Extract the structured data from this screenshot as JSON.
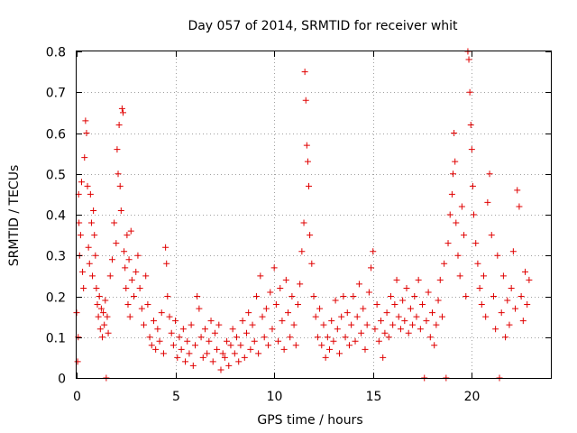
{
  "chart_data": {
    "type": "scatter",
    "title": "Day 057 of 2014, SRMTID for receiver whit",
    "xlabel": "GPS time / hours",
    "ylabel": "SRMTID / TECUs",
    "xlim": [
      0,
      24
    ],
    "ylim": [
      0,
      0.8
    ],
    "xticks": [
      0,
      5,
      10,
      15,
      20
    ],
    "yticks": [
      0,
      0.1,
      0.2,
      0.3,
      0.4,
      0.5,
      0.6,
      0.7,
      0.8
    ],
    "xtick_labels": [
      "0",
      "5",
      "10",
      "15",
      "20"
    ],
    "ytick_labels": [
      "0",
      "0.1",
      "0.2",
      "0.3",
      "0.4",
      "0.5",
      "0.6",
      "0.7",
      "0.8"
    ],
    "grid": true,
    "marker": "+",
    "color": "#e00000",
    "series": [
      {
        "name": "SRMTID",
        "points": [
          [
            0.0,
            0.16
          ],
          [
            0.05,
            0.04
          ],
          [
            0.08,
            0.1
          ],
          [
            0.1,
            0.45
          ],
          [
            0.12,
            0.38
          ],
          [
            0.15,
            0.3
          ],
          [
            0.2,
            0.35
          ],
          [
            0.25,
            0.48
          ],
          [
            0.3,
            0.26
          ],
          [
            0.35,
            0.22
          ],
          [
            0.4,
            0.54
          ],
          [
            0.45,
            0.63
          ],
          [
            0.5,
            0.6
          ],
          [
            0.55,
            0.47
          ],
          [
            0.6,
            0.32
          ],
          [
            0.65,
            0.28
          ],
          [
            0.7,
            0.45
          ],
          [
            0.75,
            0.38
          ],
          [
            0.8,
            0.25
          ],
          [
            0.85,
            0.41
          ],
          [
            0.9,
            0.35
          ],
          [
            0.95,
            0.3
          ],
          [
            1.0,
            0.22
          ],
          [
            1.05,
            0.18
          ],
          [
            1.1,
            0.15
          ],
          [
            1.15,
            0.2
          ],
          [
            1.2,
            0.12
          ],
          [
            1.25,
            0.17
          ],
          [
            1.3,
            0.1
          ],
          [
            1.35,
            0.16
          ],
          [
            1.4,
            0.13
          ],
          [
            1.45,
            0.19
          ],
          [
            1.5,
            0.0
          ],
          [
            1.55,
            0.15
          ],
          [
            1.6,
            0.11
          ],
          [
            1.7,
            0.25
          ],
          [
            1.8,
            0.29
          ],
          [
            1.9,
            0.38
          ],
          [
            2.0,
            0.33
          ],
          [
            2.05,
            0.56
          ],
          [
            2.1,
            0.5
          ],
          [
            2.15,
            0.62
          ],
          [
            2.2,
            0.47
          ],
          [
            2.25,
            0.41
          ],
          [
            2.3,
            0.66
          ],
          [
            2.35,
            0.65
          ],
          [
            2.4,
            0.31
          ],
          [
            2.45,
            0.27
          ],
          [
            2.5,
            0.22
          ],
          [
            2.55,
            0.35
          ],
          [
            2.6,
            0.18
          ],
          [
            2.65,
            0.29
          ],
          [
            2.7,
            0.15
          ],
          [
            2.75,
            0.36
          ],
          [
            2.8,
            0.24
          ],
          [
            2.9,
            0.2
          ],
          [
            3.0,
            0.26
          ],
          [
            3.1,
            0.3
          ],
          [
            3.2,
            0.22
          ],
          [
            3.3,
            0.17
          ],
          [
            3.4,
            0.13
          ],
          [
            3.5,
            0.25
          ],
          [
            3.6,
            0.18
          ],
          [
            3.7,
            0.1
          ],
          [
            3.8,
            0.08
          ],
          [
            3.9,
            0.14
          ],
          [
            4.0,
            0.07
          ],
          [
            4.1,
            0.12
          ],
          [
            4.2,
            0.09
          ],
          [
            4.3,
            0.16
          ],
          [
            4.4,
            0.06
          ],
          [
            4.5,
            0.32
          ],
          [
            4.55,
            0.28
          ],
          [
            4.6,
            0.2
          ],
          [
            4.7,
            0.15
          ],
          [
            4.8,
            0.11
          ],
          [
            4.9,
            0.08
          ],
          [
            5.0,
            0.14
          ],
          [
            5.1,
            0.05
          ],
          [
            5.2,
            0.1
          ],
          [
            5.3,
            0.07
          ],
          [
            5.4,
            0.12
          ],
          [
            5.5,
            0.04
          ],
          [
            5.6,
            0.09
          ],
          [
            5.7,
            0.06
          ],
          [
            5.8,
            0.13
          ],
          [
            5.9,
            0.03
          ],
          [
            6.0,
            0.08
          ],
          [
            6.1,
            0.2
          ],
          [
            6.2,
            0.17
          ],
          [
            6.3,
            0.1
          ],
          [
            6.4,
            0.05
          ],
          [
            6.5,
            0.12
          ],
          [
            6.6,
            0.06
          ],
          [
            6.7,
            0.09
          ],
          [
            6.8,
            0.14
          ],
          [
            6.9,
            0.04
          ],
          [
            7.0,
            0.11
          ],
          [
            7.1,
            0.07
          ],
          [
            7.2,
            0.13
          ],
          [
            7.3,
            0.02
          ],
          [
            7.4,
            0.06
          ],
          [
            7.5,
            0.05
          ],
          [
            7.6,
            0.09
          ],
          [
            7.7,
            0.03
          ],
          [
            7.8,
            0.08
          ],
          [
            7.9,
            0.12
          ],
          [
            8.0,
            0.06
          ],
          [
            8.1,
            0.1
          ],
          [
            8.2,
            0.04
          ],
          [
            8.3,
            0.08
          ],
          [
            8.4,
            0.14
          ],
          [
            8.5,
            0.05
          ],
          [
            8.6,
            0.11
          ],
          [
            8.7,
            0.16
          ],
          [
            8.8,
            0.07
          ],
          [
            8.9,
            0.13
          ],
          [
            9.0,
            0.09
          ],
          [
            9.1,
            0.2
          ],
          [
            9.2,
            0.06
          ],
          [
            9.3,
            0.25
          ],
          [
            9.4,
            0.15
          ],
          [
            9.5,
            0.1
          ],
          [
            9.6,
            0.17
          ],
          [
            9.7,
            0.08
          ],
          [
            9.8,
            0.21
          ],
          [
            9.9,
            0.12
          ],
          [
            10.0,
            0.27
          ],
          [
            10.1,
            0.18
          ],
          [
            10.2,
            0.09
          ],
          [
            10.3,
            0.22
          ],
          [
            10.4,
            0.14
          ],
          [
            10.5,
            0.07
          ],
          [
            10.6,
            0.24
          ],
          [
            10.7,
            0.16
          ],
          [
            10.8,
            0.1
          ],
          [
            10.9,
            0.2
          ],
          [
            11.0,
            0.13
          ],
          [
            11.1,
            0.08
          ],
          [
            11.2,
            0.18
          ],
          [
            11.3,
            0.23
          ],
          [
            11.4,
            0.31
          ],
          [
            11.5,
            0.38
          ],
          [
            11.55,
            0.75
          ],
          [
            11.6,
            0.68
          ],
          [
            11.65,
            0.57
          ],
          [
            11.7,
            0.53
          ],
          [
            11.75,
            0.47
          ],
          [
            11.8,
            0.35
          ],
          [
            11.9,
            0.28
          ],
          [
            12.0,
            0.2
          ],
          [
            12.1,
            0.15
          ],
          [
            12.2,
            0.1
          ],
          [
            12.3,
            0.17
          ],
          [
            12.4,
            0.08
          ],
          [
            12.5,
            0.13
          ],
          [
            12.6,
            0.05
          ],
          [
            12.7,
            0.1
          ],
          [
            12.8,
            0.07
          ],
          [
            12.9,
            0.14
          ],
          [
            13.0,
            0.09
          ],
          [
            13.1,
            0.19
          ],
          [
            13.2,
            0.12
          ],
          [
            13.3,
            0.06
          ],
          [
            13.4,
            0.15
          ],
          [
            13.5,
            0.2
          ],
          [
            13.6,
            0.1
          ],
          [
            13.7,
            0.16
          ],
          [
            13.8,
            0.08
          ],
          [
            13.9,
            0.13
          ],
          [
            14.0,
            0.2
          ],
          [
            14.1,
            0.09
          ],
          [
            14.2,
            0.15
          ],
          [
            14.3,
            0.23
          ],
          [
            14.4,
            0.11
          ],
          [
            14.5,
            0.17
          ],
          [
            14.6,
            0.07
          ],
          [
            14.7,
            0.13
          ],
          [
            14.8,
            0.21
          ],
          [
            14.9,
            0.27
          ],
          [
            15.0,
            0.31
          ],
          [
            15.1,
            0.12
          ],
          [
            15.2,
            0.18
          ],
          [
            15.3,
            0.09
          ],
          [
            15.4,
            0.14
          ],
          [
            15.5,
            0.05
          ],
          [
            15.6,
            0.11
          ],
          [
            15.7,
            0.16
          ],
          [
            15.8,
            0.1
          ],
          [
            15.9,
            0.2
          ],
          [
            16.0,
            0.13
          ],
          [
            16.1,
            0.18
          ],
          [
            16.2,
            0.24
          ],
          [
            16.3,
            0.15
          ],
          [
            16.4,
            0.12
          ],
          [
            16.5,
            0.19
          ],
          [
            16.6,
            0.14
          ],
          [
            16.7,
            0.22
          ],
          [
            16.8,
            0.11
          ],
          [
            16.9,
            0.17
          ],
          [
            17.0,
            0.13
          ],
          [
            17.1,
            0.2
          ],
          [
            17.2,
            0.15
          ],
          [
            17.3,
            0.24
          ],
          [
            17.4,
            0.12
          ],
          [
            17.5,
            0.18
          ],
          [
            17.6,
            0.0
          ],
          [
            17.7,
            0.14
          ],
          [
            17.8,
            0.21
          ],
          [
            17.9,
            0.1
          ],
          [
            18.0,
            0.16
          ],
          [
            18.1,
            0.08
          ],
          [
            18.2,
            0.13
          ],
          [
            18.3,
            0.19
          ],
          [
            18.4,
            0.24
          ],
          [
            18.5,
            0.15
          ],
          [
            18.6,
            0.28
          ],
          [
            18.7,
            0.0
          ],
          [
            18.8,
            0.33
          ],
          [
            18.9,
            0.4
          ],
          [
            19.0,
            0.45
          ],
          [
            19.05,
            0.5
          ],
          [
            19.1,
            0.6
          ],
          [
            19.15,
            0.53
          ],
          [
            19.2,
            0.38
          ],
          [
            19.3,
            0.3
          ],
          [
            19.4,
            0.25
          ],
          [
            19.5,
            0.42
          ],
          [
            19.6,
            0.35
          ],
          [
            19.7,
            0.2
          ],
          [
            19.8,
            0.8
          ],
          [
            19.85,
            0.78
          ],
          [
            19.9,
            0.7
          ],
          [
            19.95,
            0.62
          ],
          [
            20.0,
            0.56
          ],
          [
            20.05,
            0.47
          ],
          [
            20.1,
            0.4
          ],
          [
            20.2,
            0.33
          ],
          [
            20.3,
            0.28
          ],
          [
            20.4,
            0.22
          ],
          [
            20.5,
            0.18
          ],
          [
            20.6,
            0.25
          ],
          [
            20.7,
            0.15
          ],
          [
            20.8,
            0.43
          ],
          [
            20.9,
            0.5
          ],
          [
            21.0,
            0.35
          ],
          [
            21.1,
            0.2
          ],
          [
            21.2,
            0.12
          ],
          [
            21.3,
            0.3
          ],
          [
            21.4,
            0.0
          ],
          [
            21.5,
            0.16
          ],
          [
            21.6,
            0.25
          ],
          [
            21.7,
            0.1
          ],
          [
            21.8,
            0.19
          ],
          [
            21.9,
            0.13
          ],
          [
            22.0,
            0.22
          ],
          [
            22.1,
            0.31
          ],
          [
            22.2,
            0.17
          ],
          [
            22.3,
            0.46
          ],
          [
            22.4,
            0.42
          ],
          [
            22.5,
            0.2
          ],
          [
            22.6,
            0.14
          ],
          [
            22.7,
            0.26
          ],
          [
            22.8,
            0.18
          ],
          [
            22.9,
            0.24
          ]
        ]
      }
    ]
  }
}
